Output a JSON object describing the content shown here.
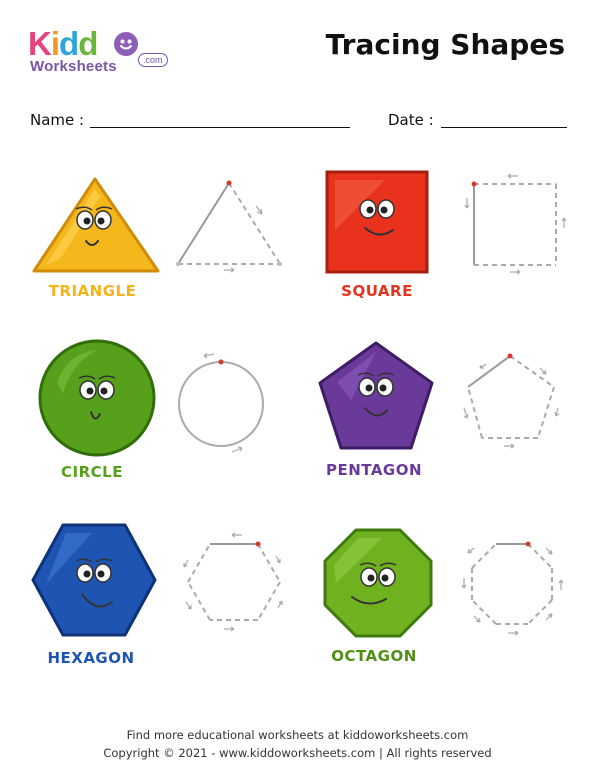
{
  "brand": {
    "logo_main": "Kiddo",
    "logo_sub": "Worksheets",
    "logo_suffix": ".com"
  },
  "header": {
    "title": "Tracing Shapes"
  },
  "form": {
    "name_label": "Name :",
    "date_label": "Date :"
  },
  "shapes": [
    {
      "label": "TRIANGLE",
      "color": "#f5b81c",
      "label_color": "#f4b31a",
      "icon": "triangle-icon"
    },
    {
      "label": "SQUARE",
      "color": "#e8321e",
      "label_color": "#e8321e",
      "icon": "square-icon"
    },
    {
      "label": "CIRCLE",
      "color": "#56a01b",
      "label_color": "#56a01b",
      "icon": "circle-icon"
    },
    {
      "label": "PENTAGON",
      "color": "#6a3a9a",
      "label_color": "#6a3a9a",
      "icon": "pentagon-icon"
    },
    {
      "label": "HEXAGON",
      "color": "#1e55b3",
      "label_color": "#1e55b3",
      "icon": "hexagon-icon"
    },
    {
      "label": "OCTAGON",
      "color": "#6fb11e",
      "label_color": "#4f8f14",
      "icon": "octagon-icon"
    }
  ],
  "footer": {
    "line1": "Find more educational worksheets at kiddoworksheets.com",
    "line2": "Copyright © 2021 - www.kiddoworksheets.com  |  All rights reserved"
  }
}
